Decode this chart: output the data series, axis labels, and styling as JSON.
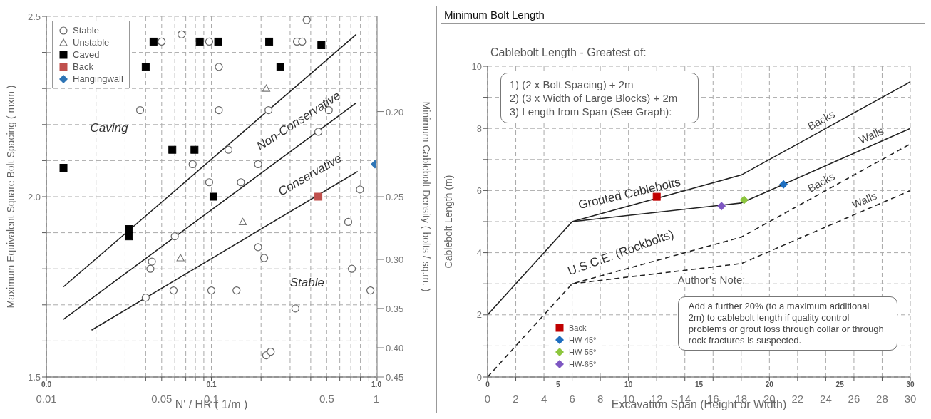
{
  "chart_data": [
    {
      "type": "scatter",
      "xlabel": "N' / HR      ( 1/m )",
      "ylabel": "Maximum Equivalent Square Bolt Spacing ( mxm )",
      "y2label": "Minimum Cablebolt Density ( bolts / sq.m. )",
      "log": "x",
      "xlim": [
        0.01,
        1
      ],
      "xticks": [
        0.01,
        {
          "value": 0.02,
          "label": null
        },
        {
          "value": 0.03,
          "label": null
        },
        {
          "value": 0.04,
          "label": null
        },
        0.05,
        {
          "value": 0.06,
          "label": null
        },
        {
          "value": 0.07,
          "label": null
        },
        {
          "value": 0.08,
          "label": null
        },
        {
          "value": 0.09,
          "label": null
        },
        0.1,
        {
          "value": 0.2,
          "label": null
        },
        {
          "value": 0.3,
          "label": null
        },
        {
          "value": 0.4,
          "label": null
        },
        0.5,
        {
          "value": 0.6,
          "label": null
        },
        {
          "value": 0.7,
          "label": null
        },
        {
          "value": 0.8,
          "label": null
        },
        {
          "value": 0.9,
          "label": null
        },
        1
      ],
      "ylim": [
        1.5,
        2.5
      ],
      "yticks": [
        1.5,
        {
          "value": 1.6,
          "label": null
        },
        {
          "value": 1.7,
          "label": null
        },
        {
          "value": 1.8,
          "label": null
        },
        {
          "value": 1.9,
          "label": null
        },
        {
          "value": 2.0,
          "label": "2.0"
        },
        {
          "value": 2.1,
          "label": null
        },
        {
          "value": 2.2,
          "label": null
        },
        {
          "value": 2.3,
          "label": null
        },
        {
          "value": 2.4,
          "label": null
        },
        2.5
      ],
      "grid": true,
      "legend": "top left",
      "annotations": [
        "Caving",
        "Stable",
        "Non-Conservative",
        "Conservative",
        "0.0",
        "0.1",
        "1.0",
        "0.20",
        "0.25",
        "0.30",
        "0.35",
        "0.40",
        "0.45"
      ],
      "series": [
        {
          "name": "Stable",
          "marker": "circle",
          "color": "#666666",
          "x": [
            0.0499,
            0.066,
            0.097,
            0.378,
            0.33,
            0.355,
            0.111,
            0.037,
            0.111,
            0.222,
            0.515,
            0.445,
            0.127,
            0.077,
            0.192,
            0.097,
            0.151,
            0.795,
            0.06,
            0.675,
            0.192,
            0.209,
            0.0436,
            0.0427,
            0.71,
            0.059,
            0.1,
            0.142,
            0.92,
            0.04,
            0.323,
            0.215,
            0.229
          ],
          "values": [
            2.43,
            2.45,
            2.43,
            2.49,
            2.43,
            2.43,
            2.36,
            2.24,
            2.24,
            2.24,
            2.24,
            2.18,
            2.13,
            2.09,
            2.09,
            2.04,
            2.04,
            2.02,
            1.89,
            1.93,
            1.86,
            1.83,
            1.82,
            1.8,
            1.8,
            1.74,
            1.74,
            1.74,
            1.74,
            1.72,
            1.69,
            1.56,
            1.57
          ]
        },
        {
          "name": "Unstable",
          "marker": "triangle",
          "color": "#777777",
          "x": [
            0.215,
            0.155,
            0.065
          ],
          "values": [
            2.3,
            1.93,
            1.83
          ]
        },
        {
          "name": "Caved",
          "marker": "square",
          "color": "#000000",
          "x": [
            0.0127,
            0.0446,
            0.04,
            0.085,
            0.11,
            0.224,
            0.464,
            0.262,
            0.058,
            0.079,
            0.103,
            0.0316,
            0.0316
          ],
          "values": [
            2.08,
            2.43,
            2.36,
            2.43,
            2.43,
            2.43,
            2.42,
            2.36,
            2.13,
            2.13,
            2.0,
            1.91,
            1.89
          ]
        },
        {
          "name": "Back",
          "marker": "square",
          "color": "#c0504d",
          "x": [
            0.445
          ],
          "values": [
            2.0
          ]
        },
        {
          "name": "Hangingwall",
          "marker": "diamond",
          "color": "#2e75b6",
          "x": [
            0.98
          ],
          "values": [
            2.09
          ]
        },
        {
          "type": "line",
          "color": "#222222",
          "x": [
            0.0127,
            0.755
          ],
          "values": [
            1.75,
            2.45
          ]
        },
        {
          "type": "line",
          "color": "#222222",
          "x": [
            0.0127,
            0.755
          ],
          "values": [
            1.66,
            2.26
          ]
        },
        {
          "type": "line",
          "color": "#222222",
          "x": [
            0.0188,
            0.77
          ],
          "values": [
            1.63,
            2.07
          ]
        }
      ]
    },
    {
      "type": "line",
      "title": "Minimum Bolt Length",
      "xlabel": "Excavation Span (Height or Width)",
      "ylabel": "Cablebolt Length (m)",
      "xlim": [
        0,
        30
      ],
      "xticks": [
        0,
        2,
        4,
        6,
        8,
        10,
        12,
        14,
        16,
        18,
        20,
        22,
        24,
        26,
        28,
        30
      ],
      "x2lim": [
        0,
        30
      ],
      "x2ticks": [
        0,
        5,
        10,
        15,
        20,
        25,
        30
      ],
      "ylim": [
        0,
        10
      ],
      "yticks": [
        0,
        {
          "value": 1,
          "label": null
        },
        2,
        {
          "value": 3,
          "label": null
        },
        4,
        {
          "value": 5,
          "label": null
        },
        6,
        {
          "value": 7,
          "label": null
        },
        8,
        {
          "value": 9,
          "label": null
        },
        10
      ],
      "grid": true,
      "legend": "bottom left",
      "annotations": [
        "Cablebolt Length - Greatest of:",
        "1) (2 x Bolt Spacing) + 2m",
        "2) (3 x Width of Large Blocks) + 2m",
        "3) Length from Span (See Graph):",
        "Author's Note:",
        "Add a further 20% (to a maximum additional 2m) to cablebolt length if quality control problems or grout loss through collar or through rock fractures is suspected.",
        "Grouted Cablebolts",
        "U.S.C.E. (Rockbolts)"
      ],
      "series": [
        {
          "name": "Backs",
          "line_style": "solid",
          "color": "#222222",
          "x": [
            0,
            6,
            18,
            30
          ],
          "values": [
            2,
            5,
            6.5,
            9.5
          ]
        },
        {
          "name": "Walls",
          "line_style": "solid",
          "color": "#222222",
          "x": [
            6,
            18,
            20,
            30
          ],
          "values": [
            5,
            5.6,
            6,
            8
          ]
        },
        {
          "name": "Backs",
          "line_style": "dashed",
          "color": "#222222",
          "x": [
            0,
            6,
            18,
            30
          ],
          "values": [
            0,
            3,
            4.5,
            7.5
          ]
        },
        {
          "name": "Walls",
          "line_style": "dashed",
          "color": "#222222",
          "x": [
            6,
            18,
            30
          ],
          "values": [
            3,
            3.65,
            6
          ]
        },
        {
          "name": "Back",
          "type": "scatter",
          "marker": "square",
          "color": "#c00000",
          "x": [
            12
          ],
          "values": [
            5.8
          ]
        },
        {
          "name": "HW-45°",
          "type": "scatter",
          "marker": "diamond",
          "color": "#1f6fc0",
          "x": [
            21
          ],
          "values": [
            6.2
          ]
        },
        {
          "name": "HW-55°",
          "type": "scatter",
          "marker": "diamond",
          "color": "#8dc63f",
          "x": [
            18.2
          ],
          "values": [
            5.7
          ]
        },
        {
          "name": "HW-65°",
          "type": "scatter",
          "marker": "diamond",
          "color": "#7e57c2",
          "x": [
            16.6
          ],
          "values": [
            5.5
          ]
        }
      ]
    }
  ]
}
